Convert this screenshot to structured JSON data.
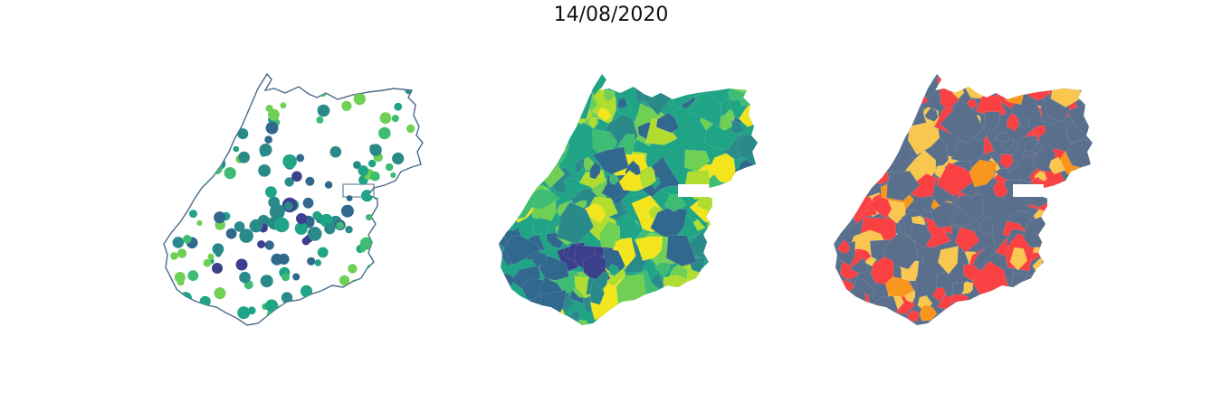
{
  "title": "14/08/2020",
  "colors": {
    "outline": "#4a6a8a",
    "viridis": [
      "#3b3f8c",
      "#31688e",
      "#2a8a8a",
      "#20a486",
      "#3fbc73",
      "#6fd055",
      "#b0dd2f",
      "#f2e51d"
    ],
    "risk": {
      "base": "#596f8c",
      "high": "#f94144",
      "medium": "#f9c74f",
      "orange": "#f8961e"
    }
  },
  "maps": [
    {
      "name": "bubble-map",
      "kind": "proportional-symbols"
    },
    {
      "name": "choropleth-viridis",
      "kind": "choropleth"
    },
    {
      "name": "choropleth-risk",
      "kind": "categorical"
    }
  ]
}
